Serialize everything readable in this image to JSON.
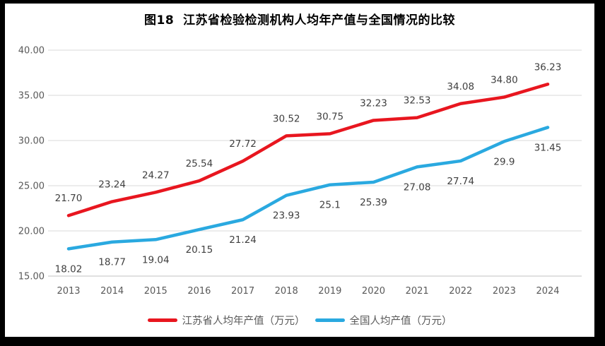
{
  "title": "图18  江苏省检验检测机构人均年产值与全国情况的比较",
  "chart_data": {
    "type": "line",
    "categories": [
      "2013",
      "2014",
      "2015",
      "2016",
      "2017",
      "2018",
      "2019",
      "2020",
      "2021",
      "2022",
      "2023",
      "2024"
    ],
    "series": [
      {
        "name": "江苏省人均年产值（万元）",
        "color": "#e8161f",
        "values": [
          21.7,
          23.24,
          24.27,
          25.54,
          27.72,
          30.52,
          30.75,
          32.23,
          32.53,
          34.08,
          34.8,
          36.23
        ],
        "labels": [
          "21.70",
          "23.24",
          "24.27",
          "25.54",
          "27.72",
          "30.52",
          "30.75",
          "32.23",
          "32.53",
          "34.08",
          "34.80",
          "36.23"
        ],
        "label_position": "above"
      },
      {
        "name": "全国人均产值（万元）",
        "color": "#2aa9e0",
        "values": [
          18.02,
          18.77,
          19.04,
          20.15,
          21.24,
          23.93,
          25.1,
          25.39,
          27.08,
          27.74,
          29.9,
          31.45
        ],
        "labels": [
          "18.02",
          "18.77",
          "19.04",
          "20.15",
          "21.24",
          "23.93",
          "25.1",
          "25.39",
          "27.08",
          "27.74",
          "29.9",
          "31.45"
        ],
        "label_position": "below"
      }
    ],
    "ylim": [
      15,
      40
    ],
    "ytick_step": 5,
    "ytick_labels": [
      "15.00",
      "20.00",
      "25.00",
      "30.00",
      "35.00",
      "40.00"
    ],
    "grid": true,
    "legend_position": "bottom",
    "colors": {
      "gridline": "#d9d9d9",
      "axis_line": "#c0c0c0",
      "tick_text": "#595959",
      "data_label": "#3f3f3f",
      "frame_border": "#000000",
      "background": "#ffffff"
    }
  }
}
